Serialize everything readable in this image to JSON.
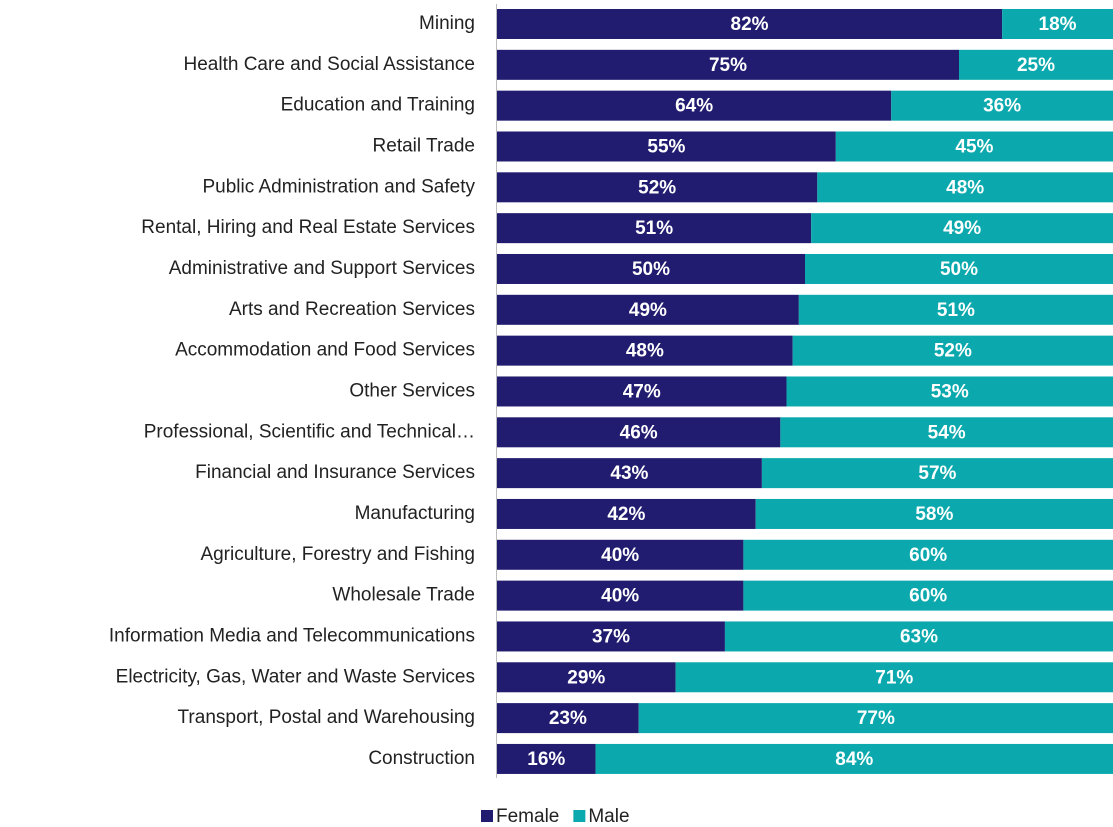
{
  "chart_data": {
    "type": "stacked-bar-horizontal",
    "categories": [
      "Mining",
      "Health Care and Social Assistance",
      "Education and Training",
      "Retail Trade",
      "Public Administration and Safety",
      "Rental, Hiring and Real Estate Services",
      "Administrative and Support Services",
      "Arts and Recreation Services",
      "Accommodation and Food Services",
      "Other Services",
      "Professional, Scientific and Technical…",
      "Financial and Insurance Services",
      "Manufacturing",
      "Agriculture, Forestry and Fishing",
      "Wholesale Trade",
      "Information Media and Telecommunications",
      "Electricity, Gas, Water and Waste Services",
      "Transport, Postal and Warehousing",
      "Construction"
    ],
    "series": [
      {
        "name": "Female",
        "color": "#211c6f",
        "values": [
          82,
          75,
          64,
          55,
          52,
          51,
          50,
          49,
          48,
          47,
          46,
          43,
          42,
          40,
          40,
          37,
          29,
          23,
          16
        ],
        "value_labels": [
          "82%",
          "75%",
          "64%",
          "55%",
          "52%",
          "51%",
          "50%",
          "49%",
          "48%",
          "47%",
          "46%",
          "43%",
          "42%",
          "40%",
          "40%",
          "37%",
          "29%",
          "23%",
          "16%"
        ]
      },
      {
        "name": "Male",
        "color": "#0ba9ad",
        "values": [
          18,
          25,
          36,
          45,
          48,
          49,
          50,
          51,
          52,
          53,
          54,
          57,
          58,
          60,
          60,
          63,
          71,
          77,
          84
        ],
        "value_labels": [
          "18%",
          "25%",
          "36%",
          "45%",
          "48%",
          "49%",
          "50%",
          "51%",
          "52%",
          "53%",
          "54%",
          "57%",
          "58%",
          "60%",
          "60%",
          "63%",
          "71%",
          "77%",
          "84%"
        ]
      }
    ]
  }
}
